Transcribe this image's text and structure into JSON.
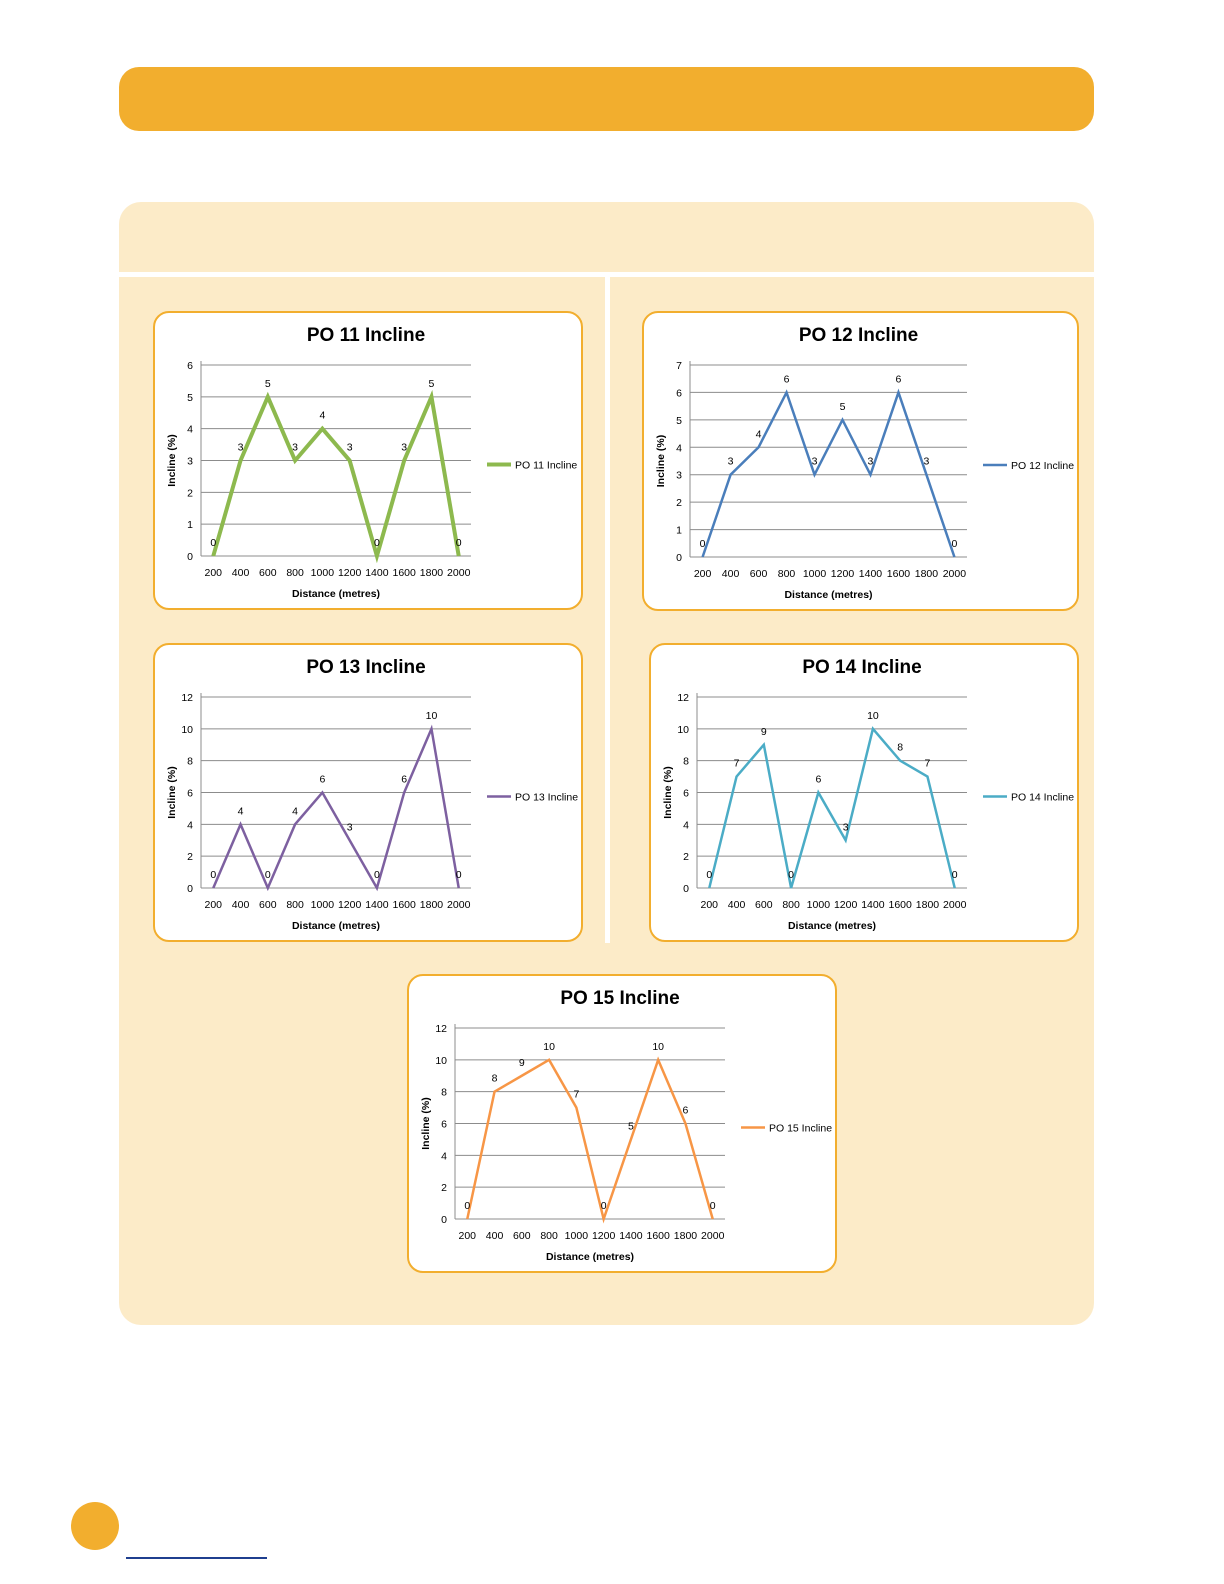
{
  "colors": {
    "accent": "#f2ae2e",
    "panel": "#fcebc8"
  },
  "chart_data": [
    {
      "type": "line",
      "title": "PO 11 Incline",
      "xlabel": "Distance (metres)",
      "ylabel": "Incline (%)",
      "x": [
        200,
        400,
        600,
        800,
        1000,
        1200,
        1400,
        1600,
        1800,
        2000
      ],
      "ylim": [
        0,
        6
      ],
      "yticks": [
        0,
        1,
        2,
        3,
        4,
        5,
        6
      ],
      "grid": true,
      "legend": "right",
      "series": [
        {
          "name": "PO 11 Incline",
          "color": "#8db94e",
          "values": [
            0,
            3,
            5,
            3,
            4,
            3,
            0,
            3,
            5,
            0
          ]
        }
      ]
    },
    {
      "type": "line",
      "title": "PO 12 Incline",
      "xlabel": "Distance (metres)",
      "ylabel": "Incline (%)",
      "x": [
        200,
        400,
        600,
        800,
        1000,
        1200,
        1400,
        1600,
        1800,
        2000
      ],
      "ylim": [
        0,
        7
      ],
      "yticks": [
        0,
        1,
        2,
        3,
        4,
        5,
        6,
        7
      ],
      "grid": true,
      "legend": "right",
      "series": [
        {
          "name": "PO 12 Incline",
          "color": "#4a7ebb",
          "values": [
            0,
            3,
            4,
            6,
            3,
            5,
            3,
            6,
            3,
            0
          ]
        }
      ]
    },
    {
      "type": "line",
      "title": "PO 13 Incline",
      "xlabel": "Distance (metres)",
      "ylabel": "Incline (%)",
      "x": [
        200,
        400,
        600,
        800,
        1000,
        1200,
        1400,
        1600,
        1800,
        2000
      ],
      "ylim": [
        0,
        12
      ],
      "yticks": [
        0,
        2,
        4,
        6,
        8,
        10,
        12
      ],
      "grid": true,
      "legend": "right",
      "series": [
        {
          "name": "PO 13 Incline",
          "color": "#7d60a0",
          "values": [
            0,
            4,
            0,
            4,
            6,
            3,
            0,
            6,
            10,
            0
          ]
        }
      ]
    },
    {
      "type": "line",
      "title": "PO 14 Incline",
      "xlabel": "Distance (metres)",
      "ylabel": "Incline (%)",
      "x": [
        200,
        400,
        600,
        800,
        1000,
        1200,
        1400,
        1600,
        1800,
        2000
      ],
      "ylim": [
        0,
        12
      ],
      "yticks": [
        0,
        2,
        4,
        6,
        8,
        10,
        12
      ],
      "grid": true,
      "legend": "right",
      "series": [
        {
          "name": "PO 14 Incline",
          "color": "#4bacc6",
          "values": [
            0,
            7,
            9,
            0,
            6,
            3,
            10,
            8,
            7,
            0
          ]
        }
      ]
    },
    {
      "type": "line",
      "title": "PO 15 Incline",
      "xlabel": "Distance (metres)",
      "ylabel": "Incline (%)",
      "x": [
        200,
        400,
        600,
        800,
        1000,
        1200,
        1400,
        1600,
        1800,
        2000
      ],
      "ylim": [
        0,
        12
      ],
      "yticks": [
        0,
        2,
        4,
        6,
        8,
        10,
        12
      ],
      "grid": true,
      "legend": "right",
      "series": [
        {
          "name": "PO 15 Incline",
          "color": "#f79646",
          "values": [
            0,
            8,
            9,
            10,
            7,
            0,
            5,
            10,
            6,
            0
          ]
        }
      ]
    }
  ]
}
